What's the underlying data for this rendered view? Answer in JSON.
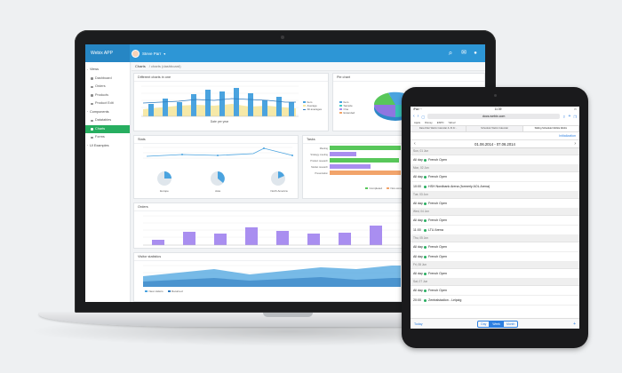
{
  "app": {
    "brand": "Webix APP",
    "user": "Steve Parr"
  },
  "breadcrumb": {
    "title": "Charts",
    "path": "/ charts (dashboard)"
  },
  "sidebar": {
    "items": [
      {
        "label": "Views",
        "group": true
      },
      {
        "label": "Dashboard"
      },
      {
        "label": "Orders"
      },
      {
        "label": "Products"
      },
      {
        "label": "Product Edit"
      },
      {
        "label": "Components",
        "group": true
      },
      {
        "label": "Datatables"
      },
      {
        "label": "Charts",
        "active": true
      },
      {
        "label": "Forms"
      },
      {
        "label": "UI Examples",
        "group": true
      }
    ]
  },
  "panels": {
    "diff": {
      "title": "Different charts in one",
      "xlabel": "Date per year",
      "legend": [
        "Item",
        "Average",
        "All averages"
      ]
    },
    "pie": {
      "title": "Pie chart",
      "legend": [
        "Item",
        "Sample",
        "One",
        "Extended"
      ]
    },
    "stats": {
      "title": "Stats",
      "radial_labels": [
        "Europe",
        "Asia",
        "North America"
      ]
    },
    "tasks": {
      "title": "Tasks",
      "legend": [
        "Completed",
        "Non-completed"
      ]
    },
    "orders": {
      "title": "Orders"
    },
    "visitors": {
      "title": "Visitor statistics",
      "legend": [
        "New visitors",
        "Returned"
      ]
    }
  },
  "colors": {
    "blue": "#4aa3df",
    "yellow": "#f5e79e",
    "purple": "#a98ef0",
    "green": "#58c75a",
    "orange": "#f2a46b",
    "teal": "#45d0c5"
  },
  "ipad": {
    "time": "11:39",
    "url": "docs.webix.com",
    "bookmarks": [
      "Apple",
      "Disney",
      "ESPN",
      "Yahoo!"
    ],
    "tabs": [
      "Data Filter Webix Calendar & JS Fr...",
      "Scheduler Webix Calendar",
      "Sliding Scheduler Mobile Webix"
    ],
    "app_label": "Initialization",
    "range": "01.06.2014 - 07.06.2014",
    "days": [
      {
        "header": "Sun, 01 Jun",
        "events": [
          {
            "time": "All day",
            "title": "French Open"
          }
        ]
      },
      {
        "header": "Mon, 02 Jun",
        "events": [
          {
            "time": "All day",
            "title": "French Open"
          },
          {
            "time": "10:00",
            "title": "HSH Nordbank Arena (formerly AOL Arena)"
          }
        ]
      },
      {
        "header": "Tue, 03 Jun",
        "events": [
          {
            "time": "All day",
            "title": "French Open"
          }
        ]
      },
      {
        "header": "Wed, 04 Jun",
        "events": [
          {
            "time": "All day",
            "title": "French Open"
          },
          {
            "time": "11:00",
            "title": "LTU Arena"
          }
        ]
      },
      {
        "header": "Thu, 05 Jun",
        "events": [
          {
            "time": "All day",
            "title": "French Open"
          },
          {
            "time": "All day",
            "title": "French Open"
          }
        ]
      },
      {
        "header": "Fri, 06 Jun",
        "events": [
          {
            "time": "All day",
            "title": "French Open"
          }
        ]
      },
      {
        "header": "Sat, 07 Jun",
        "events": [
          {
            "time": "All day",
            "title": "French Open"
          },
          {
            "time": "20:00",
            "title": "Zentralstadion - Leipzig"
          }
        ]
      }
    ],
    "footer": {
      "today": "Today",
      "views": [
        "Day",
        "Week",
        "Month"
      ],
      "active_view": "Week",
      "add": "+"
    }
  }
}
